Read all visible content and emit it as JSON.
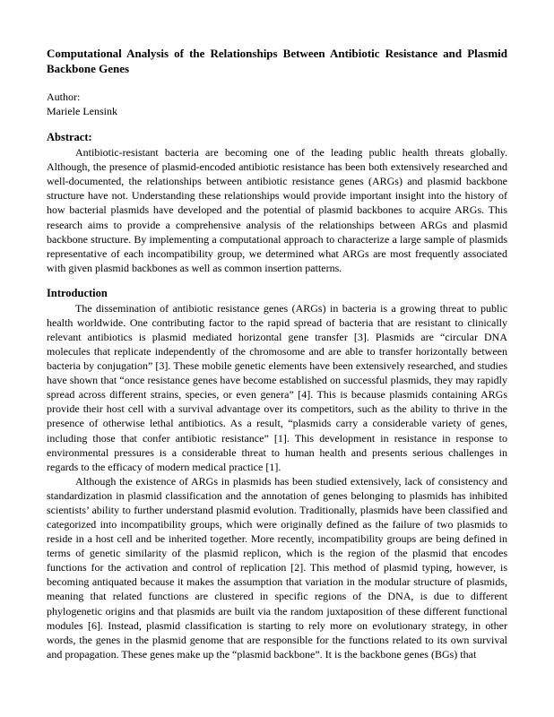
{
  "title": "Computational Analysis of the Relationships Between Antibiotic Resistance and Plasmid Backbone Genes",
  "author_label": "Author:",
  "author_name": "Mariele Lensink",
  "abstract_heading": "Abstract:",
  "abstract_body": "Antibiotic-resistant bacteria are becoming one of the leading public health threats globally. Although, the presence of plasmid-encoded antibiotic resistance has been both extensively researched and well-documented, the relationships between antibiotic resistance genes (ARGs) and plasmid backbone structure have not. Understanding these relationships would provide important insight into the history of how bacterial plasmids have developed and the potential of plasmid backbones to acquire ARGs. This research aims to provide a comprehensive analysis of the relationships between ARGs and plasmid backbone structure. By implementing a computational approach to characterize a large sample of plasmids representative of each incompatibility group, we determined what ARGs are most frequently associated with given plasmid backbones as well as common insertion patterns.",
  "intro_heading": "Introduction",
  "intro_p1": "The dissemination of antibiotic resistance genes (ARGs) in bacteria is a growing threat to public health worldwide. One contributing factor to the rapid spread of bacteria that are resistant to clinically relevant antibiotics is plasmid mediated horizontal gene transfer [3]. Plasmids are “circular DNA molecules that replicate independently of the chromosome and are able to transfer horizontally between bacteria by conjugation” [3]. These mobile genetic elements have been extensively researched, and studies have shown that “once resistance genes have become established on successful plasmids, they may rapidly spread across different strains, species, or even genera” [4].  This is because plasmids containing ARGs provide their host cell with a survival advantage over its competitors, such as the ability to thrive in the presence of otherwise lethal antibiotics. As a result, “plasmids carry a considerable variety of genes, including those that confer antibiotic resistance” [1].  This development in resistance in response to environmental pressures is a considerable threat to human health and presents serious challenges in regards to the efficacy of modern medical practice [1].",
  "intro_p2": "Although the existence of ARGs in plasmids has been studied extensively, lack of consistency and standardization in plasmid classification and the annotation of genes belonging to plasmids has inhibited scientists’ ability to further understand plasmid evolution. Traditionally, plasmids have been classified and categorized into incompatibility groups, which were originally defined as the failure of two plasmids to reside in a host cell and be inherited together. More recently, incompatibility groups are being defined in terms of genetic similarity of the plasmid replicon, which is the region of the plasmid that encodes functions for the activation and control of replication [2]. This method of plasmid typing, however, is becoming antiquated because it makes the assumption that variation in the modular structure of plasmids, meaning that related functions are clustered in specific regions of the DNA, is due to different phylogenetic origins and that plasmids are built via the random juxtaposition of these different functional modules [6]. Instead, plasmid classification is starting to rely more on evolutionary strategy, in other words, the genes in the plasmid genome that are responsible for the functions related to its own survival and propagation. These genes make up the “plasmid backbone”. It is the backbone genes (BGs) that"
}
